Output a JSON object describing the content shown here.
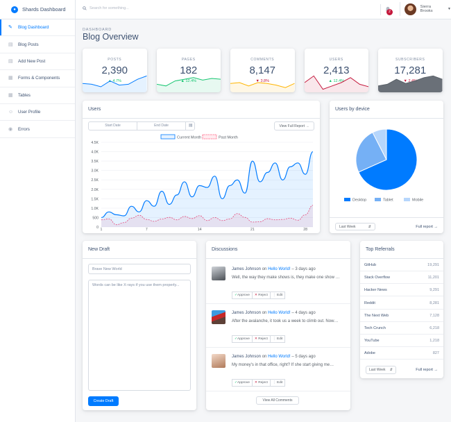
{
  "brand": {
    "title": "Shards Dashboard"
  },
  "sidebar": {
    "items": [
      {
        "label": "Blog Dashboard",
        "icon": "pencil-icon",
        "active": true
      },
      {
        "label": "Blog Posts",
        "icon": "document-icon"
      },
      {
        "label": "Add New Post",
        "icon": "add-note-icon"
      },
      {
        "label": "Forms & Components",
        "icon": "form-icon"
      },
      {
        "label": "Tables",
        "icon": "table-icon"
      },
      {
        "label": "User Profile",
        "icon": "user-icon"
      },
      {
        "label": "Errors",
        "icon": "error-icon"
      }
    ]
  },
  "topbar": {
    "search_placeholder": "Search for something...",
    "notification_count": "2",
    "user_name": "Sierra Brooks"
  },
  "page": {
    "subtitle": "DASHBOARD",
    "title": "Blog Overview"
  },
  "stats": [
    {
      "label": "POSTS",
      "value": "2,390",
      "change": "4.7%",
      "direction": "up",
      "color": "#007bff"
    },
    {
      "label": "PAGES",
      "value": "182",
      "change": "12.4%",
      "direction": "up",
      "color": "#17c671"
    },
    {
      "label": "COMMENTS",
      "value": "8,147",
      "change": "3.8%",
      "direction": "down",
      "color": "#ffb400"
    },
    {
      "label": "USERS",
      "value": "2,413",
      "change": "12.4%",
      "direction": "up",
      "color": "#c4183c"
    },
    {
      "label": "SUBSCRIBERS",
      "value": "17,281",
      "change": "2.4%",
      "direction": "down",
      "color": "#5a6169"
    }
  ],
  "users_card": {
    "title": "Users",
    "start_date": "Start Date",
    "end_date": "End Date",
    "report_btn": "View Full Report →"
  },
  "chart_data": [
    {
      "type": "line",
      "title": "Users",
      "series": [
        {
          "name": "Current Month",
          "color": "#007bff",
          "values": [
            500,
            800,
            650,
            590,
            1100,
            800,
            1400,
            1100,
            1900,
            1200,
            1700,
            2400,
            1600,
            2200,
            2100,
            2700,
            1500,
            2200,
            2500,
            1800,
            3500,
            2400,
            2900,
            3400,
            2500,
            3200,
            3400,
            2800,
            4000
          ]
        },
        {
          "name": "Past Month",
          "color": "#ff4169",
          "values": [
            380,
            430,
            120,
            230,
            470,
            620,
            400,
            300,
            420,
            510,
            380,
            560,
            450,
            600,
            340,
            500,
            340,
            430,
            710,
            510,
            260,
            280,
            440,
            380,
            400,
            470,
            360,
            650,
            1150
          ]
        }
      ],
      "x_ticks": [
        "1",
        "7",
        "14",
        "21",
        "28"
      ],
      "y_ticks": [
        "0",
        "500",
        "1.0K",
        "1.5K",
        "2.0K",
        "2.5K",
        "3.0K",
        "3.5K",
        "4.0K",
        "4.5K"
      ],
      "ylim": [
        0,
        4500
      ]
    },
    {
      "type": "pie",
      "title": "Users by device",
      "labels": [
        "Desktop",
        "Tablet",
        "Mobile"
      ],
      "values": [
        68.3,
        24.2,
        7.5
      ],
      "colors": [
        "#007bff",
        "#75b0f5",
        "#b6d6fc"
      ]
    }
  ],
  "device_card": {
    "title": "Users by device",
    "range": "Last Week",
    "report": "Full report →"
  },
  "draft": {
    "title": "New Draft",
    "title_placeholder": "Brave New World",
    "body_placeholder": "Words can be like X-rays if you use them properly...",
    "button": "Create Draft"
  },
  "discussions": {
    "title": "Discussions",
    "view_all": "View All Comments",
    "items": [
      {
        "author": "James Johnson",
        "on": "on",
        "post": "Hello World!",
        "time": "– 3 days ago",
        "text": "Well, the way they make shows is, they make one show …",
        "approve": "Approve",
        "reject": "Reject",
        "edit": "Edit"
      },
      {
        "author": "James Johnson",
        "on": "on",
        "post": "Hello World!",
        "time": "– 4 days ago",
        "text": "After the avalanche, it took us a week to climb out. Now…",
        "approve": "Approve",
        "reject": "Reject",
        "edit": "Edit"
      },
      {
        "author": "James Johnson",
        "on": "on",
        "post": "Hello World!",
        "time": "– 5 days ago",
        "text": "My money's in that office, right? If she start giving me…",
        "approve": "Approve",
        "reject": "Reject",
        "edit": "Edit"
      }
    ]
  },
  "referrals": {
    "title": "Top Referrals",
    "range": "Last Week",
    "report": "Full report →",
    "items": [
      {
        "name": "GitHub",
        "count": "19,291"
      },
      {
        "name": "Stack Overflow",
        "count": "11,201"
      },
      {
        "name": "Hacker News",
        "count": "9,291"
      },
      {
        "name": "Reddit",
        "count": "8,281"
      },
      {
        "name": "The Next Web",
        "count": "7,128"
      },
      {
        "name": "Tech Crunch",
        "count": "6,218"
      },
      {
        "name": "YouTube",
        "count": "1,218"
      },
      {
        "name": "Adobe",
        "count": "827"
      }
    ]
  }
}
